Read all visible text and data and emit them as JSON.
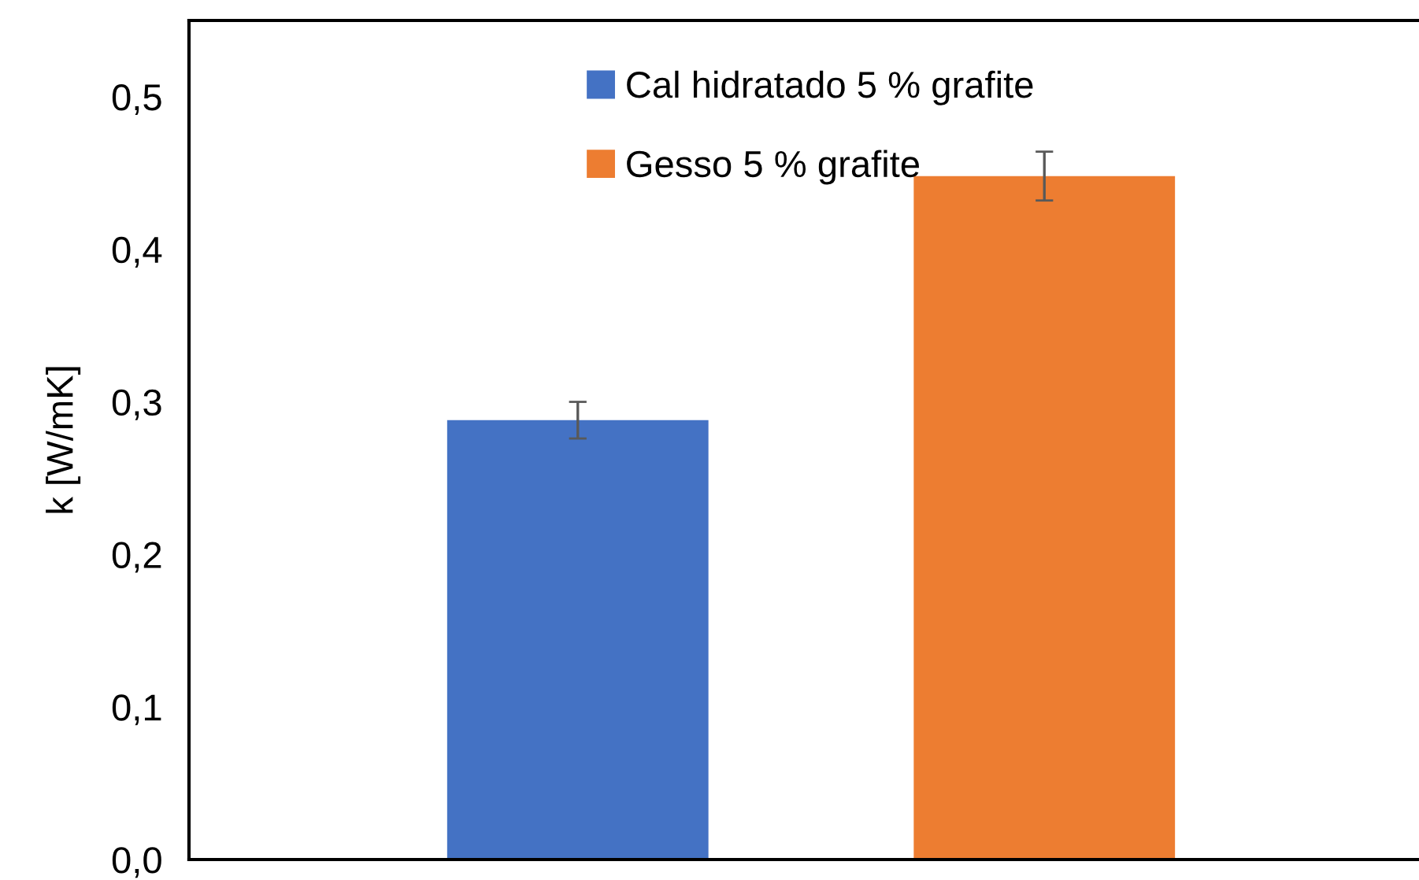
{
  "chart_data": {
    "type": "bar",
    "ylabel": "k [W/mK]",
    "categories": [
      null
    ],
    "series": [
      {
        "name": "Cal hidratado 5 % grafite",
        "color": "#4472c4",
        "values": [
          0.288
        ],
        "errors": [
          0.012
        ]
      },
      {
        "name": "Gesso 5 % grafite",
        "color": "#ed7d31",
        "values": [
          0.448
        ],
        "errors": [
          0.016
        ]
      }
    ],
    "ylim": [
      0,
      0.55
    ],
    "yticks": [
      {
        "value": 0,
        "label": "0,0"
      },
      {
        "value": 0.1,
        "label": "0,1"
      },
      {
        "value": 0.2,
        "label": "0,2"
      },
      {
        "value": 0.3,
        "label": "0,3"
      },
      {
        "value": 0.4,
        "label": "0,4"
      },
      {
        "value": 0.5,
        "label": "0,5"
      }
    ],
    "grid": false,
    "legend": "top"
  }
}
